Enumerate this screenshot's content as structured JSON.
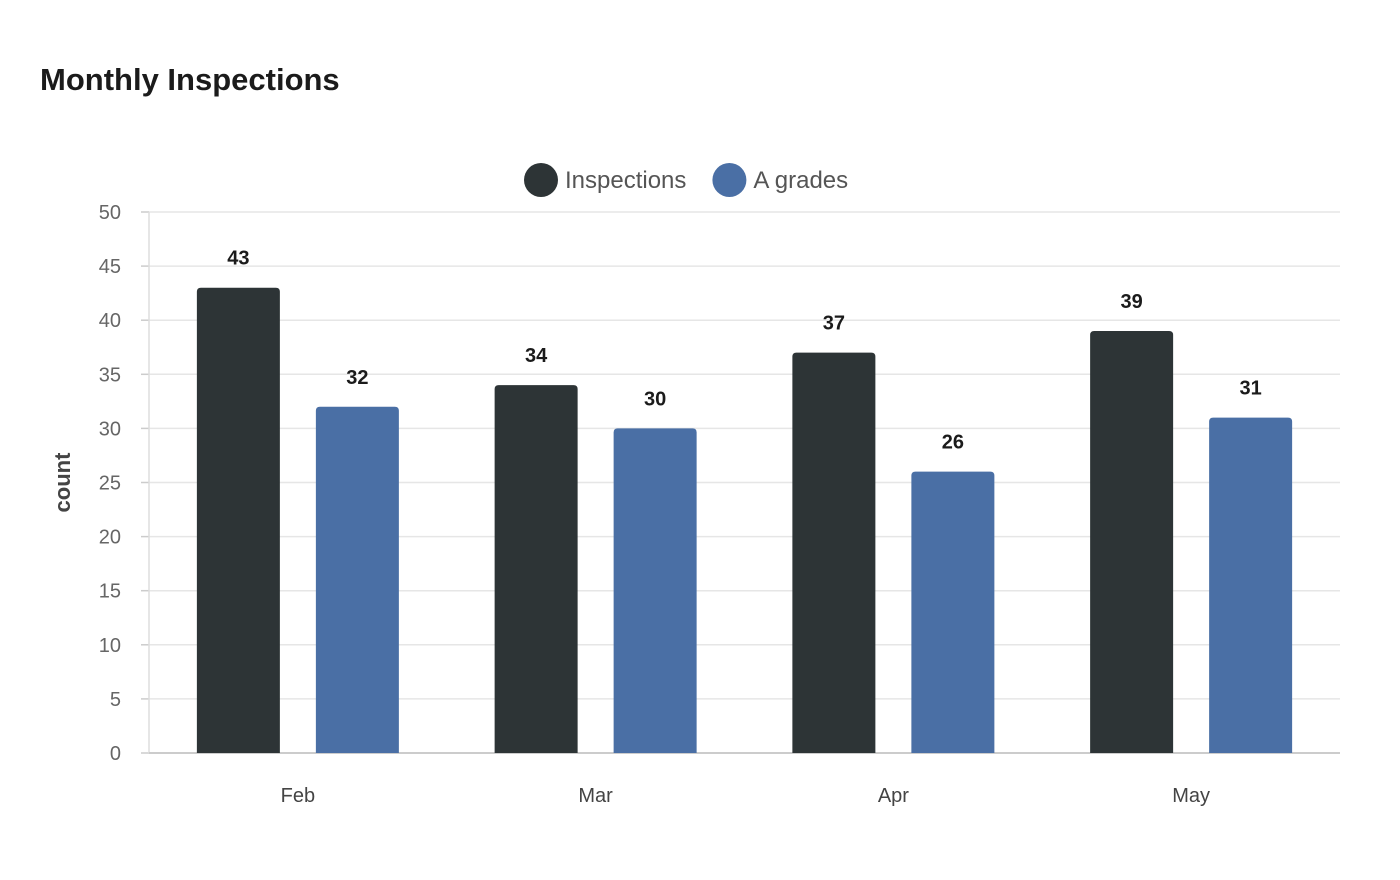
{
  "title": "Monthly Inspections",
  "chart_data": {
    "type": "bar",
    "categories": [
      "Feb",
      "Mar",
      "Apr",
      "May"
    ],
    "series": [
      {
        "name": "Inspections",
        "values": [
          43,
          34,
          37,
          39
        ],
        "color": "#2d3436"
      },
      {
        "name": "A grades",
        "values": [
          32,
          30,
          26,
          31
        ],
        "color": "#4a6fa5"
      }
    ],
    "title": "Monthly Inspections",
    "xlabel": "",
    "ylabel": "count",
    "ylim": [
      0,
      50
    ],
    "yticks": [
      0,
      5,
      10,
      15,
      20,
      25,
      30,
      35,
      40,
      45,
      50
    ],
    "grid": true,
    "legend_position": "top-center",
    "data_labels": true
  }
}
